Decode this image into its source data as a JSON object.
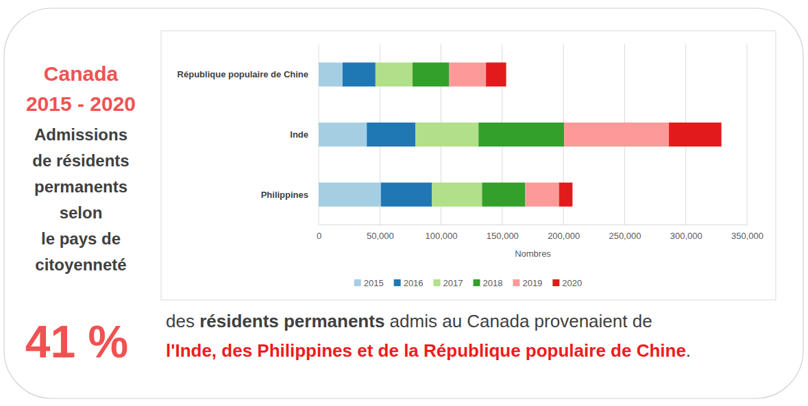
{
  "chart_data": {
    "type": "bar",
    "orientation": "horizontal",
    "stacked": true,
    "categories": [
      "République populaire de Chine",
      "Inde",
      "Philippines"
    ],
    "series": [
      {
        "name": "2015",
        "color": "#a6cee3",
        "values": [
          19500,
          39300,
          50800
        ]
      },
      {
        "name": "2016",
        "color": "#1f78b4",
        "values": [
          26900,
          39700,
          41800
        ]
      },
      {
        "name": "2017",
        "color": "#b2df8a",
        "values": [
          30300,
          51600,
          40900
        ]
      },
      {
        "name": "2018",
        "color": "#33a02c",
        "values": [
          29700,
          70000,
          35100
        ]
      },
      {
        "name": "2019",
        "color": "#fb9a99",
        "values": [
          30300,
          85600,
          27800
        ]
      },
      {
        "name": "2020",
        "color": "#e31a1c",
        "values": [
          16500,
          42900,
          11000
        ]
      }
    ],
    "xlim": [
      0,
      350000
    ],
    "xticks": [
      0,
      {
        "value": 50000,
        "label": "50,000"
      },
      {
        "value": 100000,
        "label": "100,000"
      },
      {
        "value": 150000,
        "label": "150,000"
      },
      {
        "value": 200000,
        "label": "200,000"
      },
      {
        "value": 250000,
        "label": "250,000"
      },
      {
        "value": 300000,
        "label": "300,000"
      },
      {
        "value": 350000,
        "label": "350,000"
      }
    ],
    "xlabel": "Nombres",
    "grid": true,
    "legend": "bottom"
  },
  "panel": {
    "title": [
      "Canada",
      "2015 - 2020"
    ],
    "subtitle": [
      "Admissions",
      "de résidents",
      "permanents",
      "selon",
      "le pays de",
      "citoyenneté"
    ]
  },
  "statement": {
    "headline": "41 %",
    "lines": [
      [
        {
          "text": "des "
        },
        {
          "text": "résidents permanents",
          "bold": true
        },
        {
          "text": " admis au Canada provenaient de"
        }
      ],
      [
        {
          "text": "l'Inde, des Philippines et de la République populaire de Chine",
          "bold": true,
          "highlight": true
        },
        {
          "text": "."
        }
      ]
    ]
  }
}
